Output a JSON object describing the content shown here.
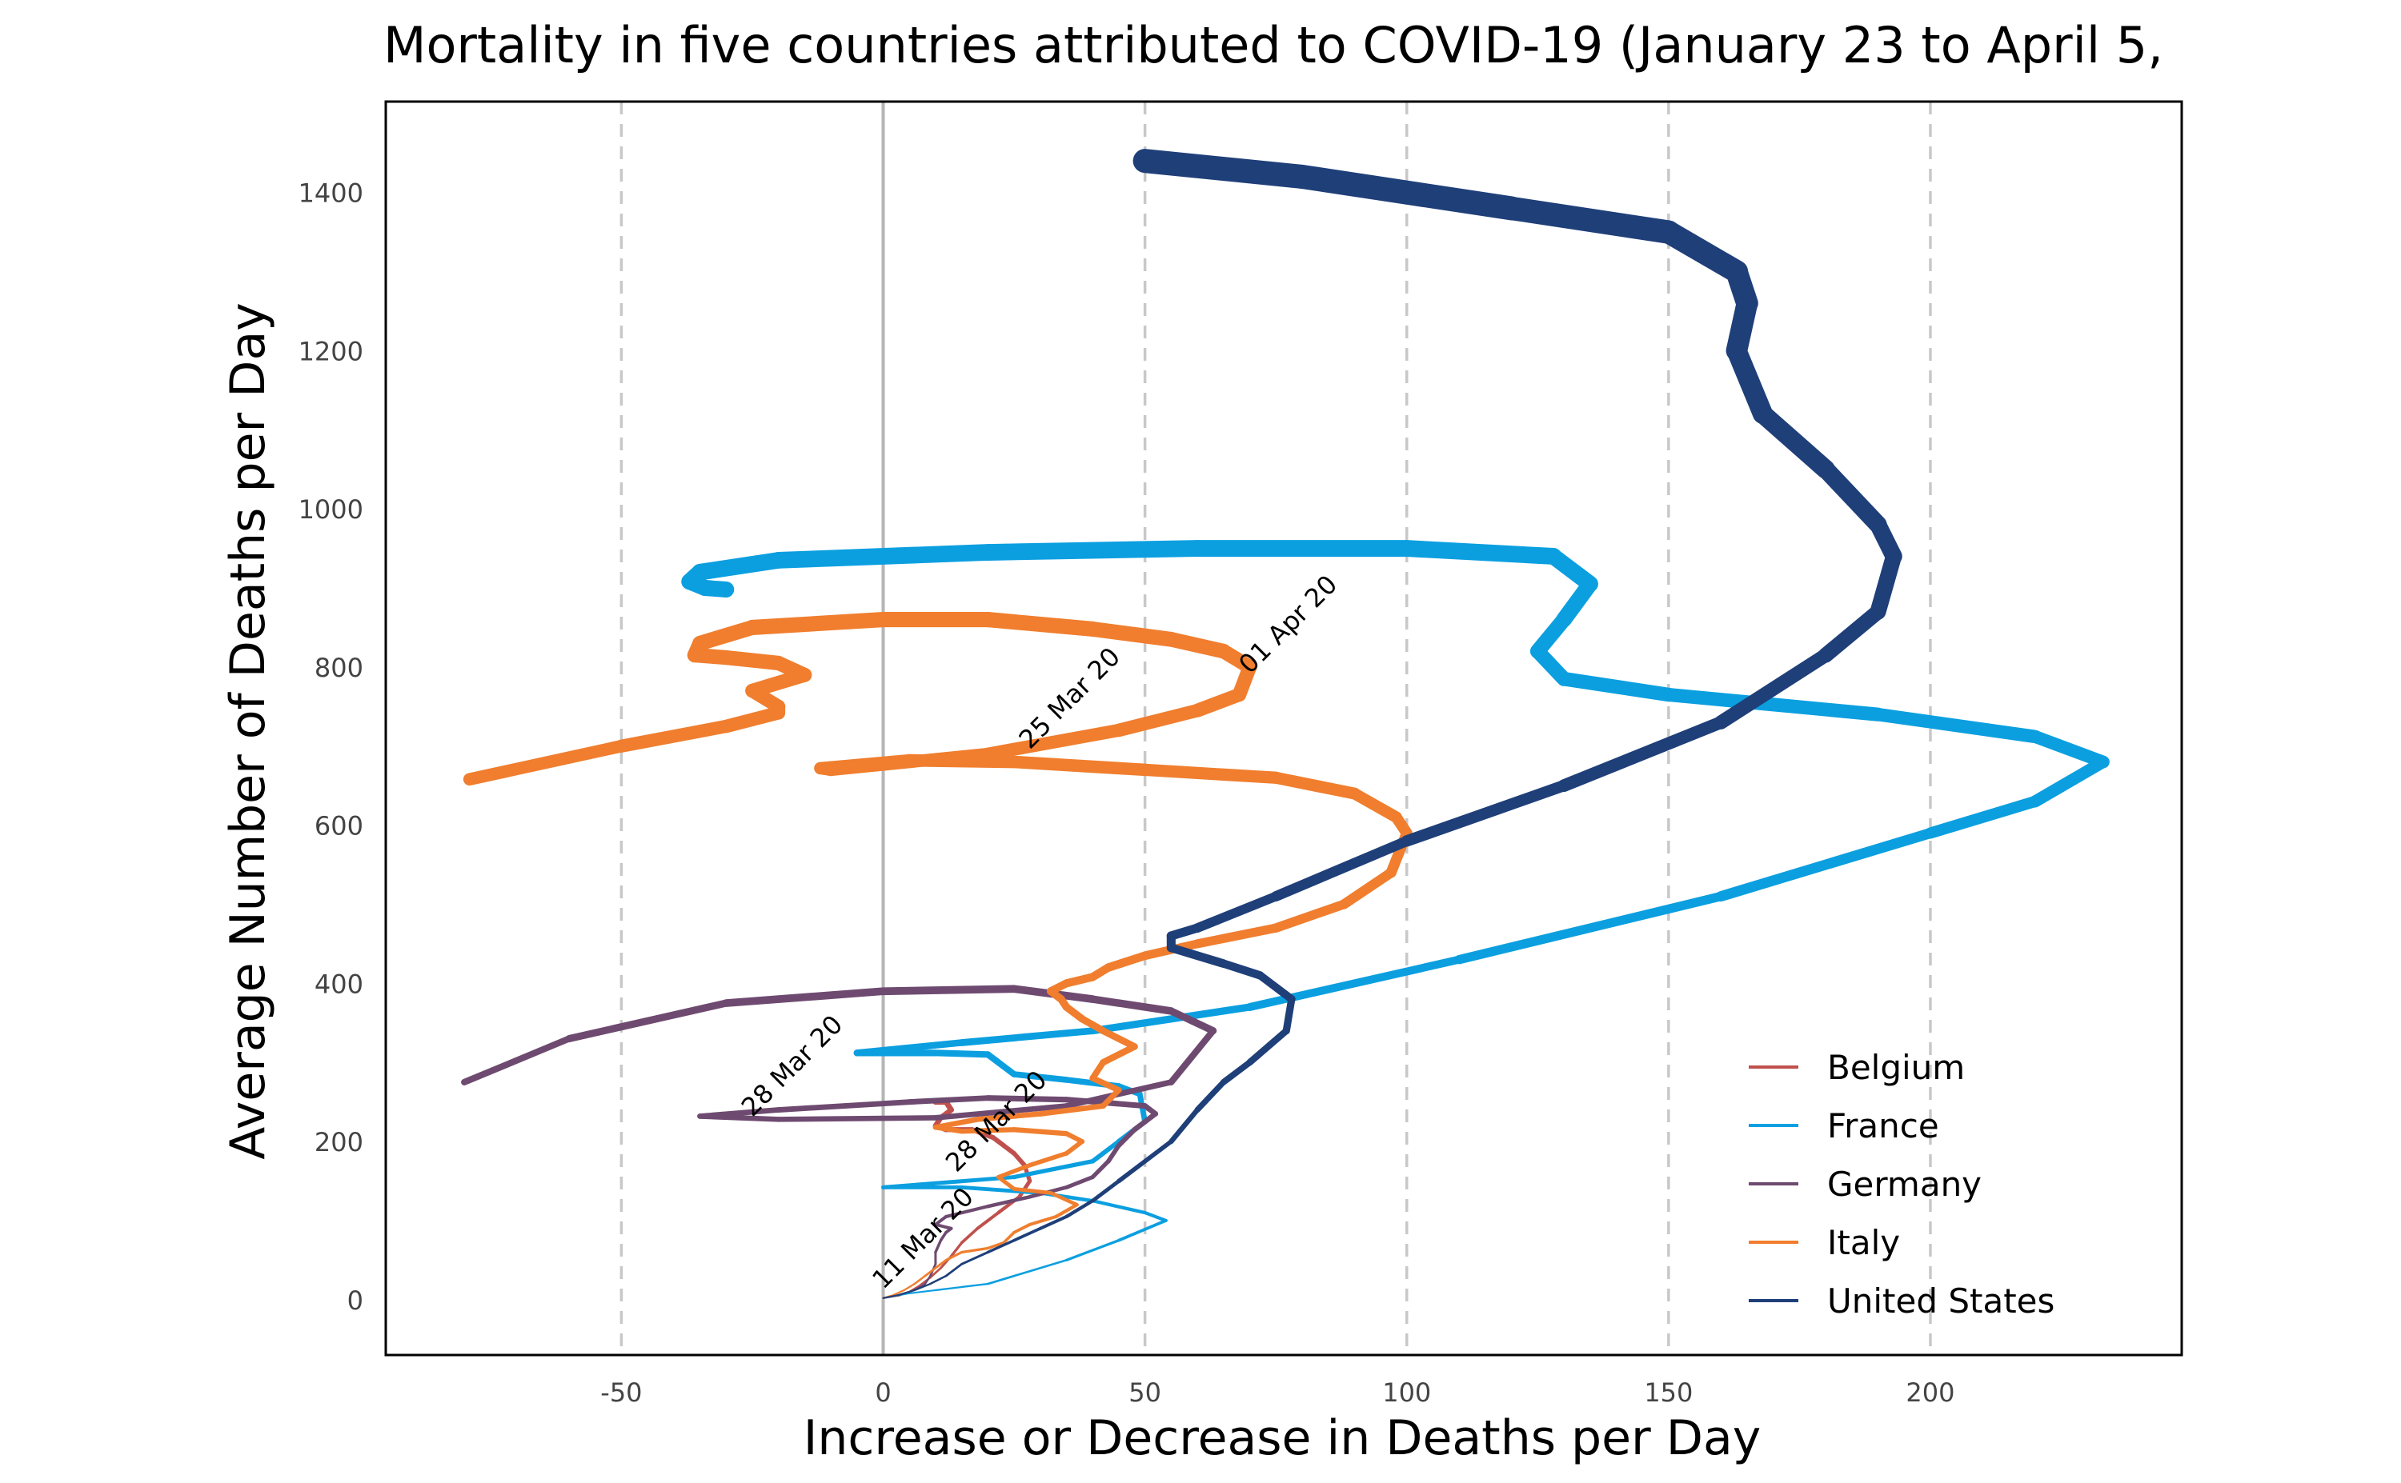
{
  "chart_data": {
    "type": "line",
    "title": "Mortality in five countries attributed to COVID-19 (January 23 to April 5,",
    "xlabel": "Increase or Decrease in Deaths per Day",
    "ylabel": "Average Number of Deaths per Day",
    "xlim": [
      -95,
      248
    ],
    "ylim": [
      -70,
      1515
    ],
    "x_ticks": [
      -50,
      0,
      50,
      100,
      150,
      200
    ],
    "x_tick_labels": [
      "-50",
      "0",
      "50",
      "100",
      "150",
      "200"
    ],
    "y_ticks": [
      0,
      200,
      400,
      600,
      800,
      1000,
      1200,
      1400
    ],
    "y_tick_labels": [
      "0",
      "200",
      "400",
      "600",
      "800",
      "1000",
      "1200",
      "1400"
    ],
    "vertical_gridlines": "dashed at x ticks",
    "horizontal_gridlines": false,
    "zero_line": true,
    "legend_position": "bottom-right",
    "series": [
      {
        "name": "Belgium",
        "color": "#c0504d",
        "points": [
          [
            0,
            2
          ],
          [
            3,
            5
          ],
          [
            5,
            10
          ],
          [
            7,
            18
          ],
          [
            9,
            28
          ],
          [
            11,
            40
          ],
          [
            13,
            55
          ],
          [
            15,
            72
          ],
          [
            18,
            90
          ],
          [
            22,
            110
          ],
          [
            26,
            130
          ],
          [
            28,
            150
          ],
          [
            27,
            170
          ],
          [
            25,
            185
          ],
          [
            23,
            195
          ],
          [
            21,
            205
          ],
          [
            17,
            215
          ],
          [
            12,
            215
          ],
          [
            10,
            220
          ],
          [
            11,
            230
          ],
          [
            13,
            240
          ],
          [
            12,
            250
          ],
          [
            10,
            250
          ]
        ]
      },
      {
        "name": "France",
        "color": "#0b9fe0",
        "points": [
          [
            0,
            2
          ],
          [
            5,
            8
          ],
          [
            10,
            12
          ],
          [
            15,
            16
          ],
          [
            20,
            20
          ],
          [
            35,
            50
          ],
          [
            45,
            75
          ],
          [
            54,
            100
          ],
          [
            50,
            110
          ],
          [
            40,
            125
          ],
          [
            30,
            135
          ],
          [
            15,
            142
          ],
          [
            0,
            142
          ],
          [
            25,
            155
          ],
          [
            40,
            175
          ],
          [
            45,
            200
          ],
          [
            50,
            225
          ],
          [
            49,
            260
          ],
          [
            45,
            270
          ],
          [
            35,
            278
          ],
          [
            25,
            285
          ],
          [
            22,
            300
          ],
          [
            20,
            310
          ],
          [
            10,
            312
          ],
          [
            0,
            312
          ],
          [
            -5,
            312
          ],
          [
            15,
            325
          ],
          [
            40,
            340
          ],
          [
            70,
            370
          ],
          [
            110,
            430
          ],
          [
            160,
            510
          ],
          [
            200,
            590
          ],
          [
            220,
            630
          ],
          [
            233,
            680
          ],
          [
            220,
            712
          ],
          [
            190,
            740
          ],
          [
            150,
            765
          ],
          [
            130,
            785
          ],
          [
            125,
            820
          ],
          [
            130,
            860
          ],
          [
            135,
            905
          ],
          [
            128,
            940
          ],
          [
            100,
            950
          ],
          [
            60,
            950
          ],
          [
            20,
            945
          ],
          [
            -20,
            935
          ],
          [
            -35,
            920
          ],
          [
            -37,
            908
          ],
          [
            -34,
            900
          ],
          [
            -30,
            898
          ]
        ]
      },
      {
        "name": "Germany",
        "color": "#6e4a70",
        "points": [
          [
            0,
            2
          ],
          [
            3,
            6
          ],
          [
            6,
            12
          ],
          [
            8,
            20
          ],
          [
            9,
            30
          ],
          [
            10,
            45
          ],
          [
            10,
            60
          ],
          [
            11,
            75
          ],
          [
            12,
            85
          ],
          [
            13,
            90
          ],
          [
            10,
            95
          ],
          [
            12,
            105
          ],
          [
            20,
            118
          ],
          [
            28,
            130
          ],
          [
            35,
            142
          ],
          [
            40,
            155
          ],
          [
            43,
            175
          ],
          [
            45,
            195
          ],
          [
            48,
            215
          ],
          [
            52,
            235
          ],
          [
            50,
            245
          ],
          [
            35,
            253
          ],
          [
            20,
            255
          ],
          [
            5,
            250
          ],
          [
            -20,
            240
          ],
          [
            -35,
            232
          ],
          [
            -20,
            228
          ],
          [
            10,
            230
          ],
          [
            35,
            245
          ],
          [
            55,
            275
          ],
          [
            63,
            340
          ],
          [
            55,
            365
          ],
          [
            40,
            380
          ],
          [
            25,
            393
          ],
          [
            0,
            390
          ],
          [
            -30,
            375
          ],
          [
            -60,
            330
          ],
          [
            -80,
            275
          ]
        ]
      },
      {
        "name": "Italy",
        "color": "#f07e2e",
        "points": [
          [
            0,
            2
          ],
          [
            2,
            6
          ],
          [
            4,
            12
          ],
          [
            6,
            20
          ],
          [
            8,
            30
          ],
          [
            10,
            40
          ],
          [
            12,
            50
          ],
          [
            15,
            60
          ],
          [
            20,
            65
          ],
          [
            23,
            72
          ],
          [
            25,
            85
          ],
          [
            28,
            95
          ],
          [
            33,
            105
          ],
          [
            37,
            120
          ],
          [
            32,
            135
          ],
          [
            25,
            140
          ],
          [
            22,
            155
          ],
          [
            28,
            170
          ],
          [
            35,
            185
          ],
          [
            38,
            200
          ],
          [
            35,
            210
          ],
          [
            25,
            215
          ],
          [
            15,
            213
          ],
          [
            10,
            218
          ],
          [
            18,
            228
          ],
          [
            30,
            235
          ],
          [
            42,
            245
          ],
          [
            45,
            265
          ],
          [
            40,
            280
          ],
          [
            42,
            300
          ],
          [
            48,
            320
          ],
          [
            42,
            340
          ],
          [
            38,
            355
          ],
          [
            35,
            370
          ],
          [
            34,
            380
          ],
          [
            32,
            390
          ],
          [
            35,
            400
          ],
          [
            40,
            408
          ],
          [
            43,
            420
          ],
          [
            50,
            435
          ],
          [
            60,
            450
          ],
          [
            75,
            470
          ],
          [
            88,
            500
          ],
          [
            97,
            540
          ],
          [
            100,
            590
          ],
          [
            98,
            610
          ],
          [
            90,
            640
          ],
          [
            75,
            660
          ],
          [
            50,
            670
          ],
          [
            25,
            680
          ],
          [
            5,
            682
          ],
          [
            -12,
            672
          ],
          [
            -10,
            670
          ],
          [
            20,
            690
          ],
          [
            45,
            720
          ],
          [
            60,
            745
          ],
          [
            68,
            765
          ],
          [
            70,
            800
          ],
          [
            65,
            820
          ],
          [
            55,
            835
          ],
          [
            40,
            848
          ],
          [
            20,
            860
          ],
          [
            0,
            860
          ],
          [
            -25,
            850
          ],
          [
            -35,
            830
          ],
          [
            -36,
            815
          ],
          [
            -30,
            812
          ],
          [
            -20,
            805
          ],
          [
            -15,
            790
          ],
          [
            -25,
            770
          ],
          [
            -20,
            750
          ],
          [
            -20,
            742
          ],
          [
            -30,
            725
          ],
          [
            -50,
            700
          ],
          [
            -79,
            658
          ]
        ]
      },
      {
        "name": "United States",
        "color": "#1f3f79",
        "points": [
          [
            0,
            2
          ],
          [
            3,
            6
          ],
          [
            6,
            12
          ],
          [
            9,
            20
          ],
          [
            12,
            30
          ],
          [
            15,
            45
          ],
          [
            20,
            60
          ],
          [
            25,
            75
          ],
          [
            30,
            90
          ],
          [
            35,
            105
          ],
          [
            40,
            125
          ],
          [
            45,
            150
          ],
          [
            55,
            200
          ],
          [
            60,
            240
          ],
          [
            65,
            275
          ],
          [
            70,
            300
          ],
          [
            77,
            340
          ],
          [
            78,
            380
          ],
          [
            72,
            410
          ],
          [
            65,
            425
          ],
          [
            55,
            445
          ],
          [
            55,
            460
          ],
          [
            60,
            470
          ],
          [
            75,
            510
          ],
          [
            100,
            580
          ],
          [
            130,
            650
          ],
          [
            160,
            730
          ],
          [
            180,
            815
          ],
          [
            190,
            870
          ],
          [
            193,
            940
          ],
          [
            190,
            980
          ],
          [
            180,
            1050
          ],
          [
            168,
            1120
          ],
          [
            163,
            1200
          ],
          [
            165,
            1260
          ],
          [
            163,
            1300
          ],
          [
            150,
            1350
          ],
          [
            120,
            1380
          ],
          [
            80,
            1420
          ],
          [
            50,
            1440
          ]
        ]
      }
    ],
    "annotations": [
      "25 Mar 20",
      "01 Apr 20",
      "28 Mar 20",
      "28 Mar 20",
      "11 Mar 20"
    ]
  }
}
